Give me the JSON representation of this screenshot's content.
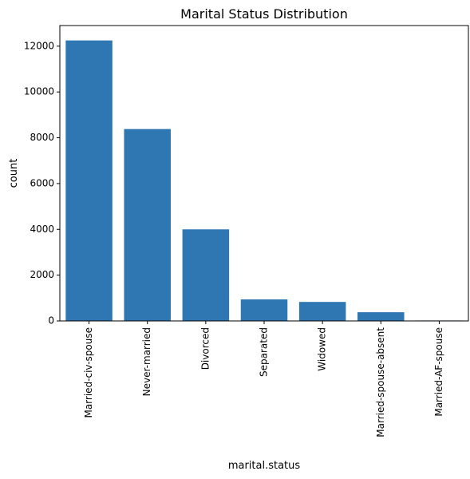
{
  "chart_data": {
    "type": "bar",
    "title": "Marital Status Distribution",
    "xlabel": "marital.status",
    "ylabel": "count",
    "categories": [
      "Married-civ-spouse",
      "Never-married",
      "Divorced",
      "Separated",
      "Widowed",
      "Married-spouse-absent",
      "Married-AF-spouse"
    ],
    "values": [
      12250,
      8380,
      4000,
      940,
      830,
      380,
      20
    ],
    "ylim": [
      0,
      12900
    ],
    "yticks": [
      0,
      2000,
      4000,
      6000,
      8000,
      10000,
      12000
    ],
    "grid": false,
    "bar_color": "#2f77b3"
  }
}
